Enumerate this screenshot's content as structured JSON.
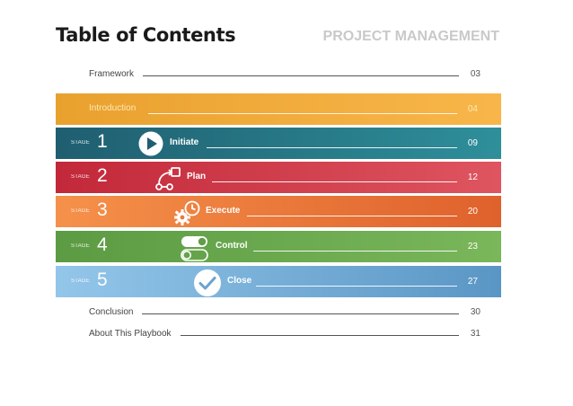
{
  "header": {
    "title": "Table of Contents",
    "brand": "PROJECT MANAGEMENT"
  },
  "framework": {
    "label": "Framework",
    "page": "03"
  },
  "introduction": {
    "label": "Introduction",
    "page": "04",
    "color": "#f0a93b"
  },
  "stage_label": "STAGE",
  "stages": [
    {
      "number": "1",
      "name": "Initiate",
      "page": "09",
      "icon": "play-icon",
      "color_from": "#1f5f70",
      "color_to": "#2d8c98"
    },
    {
      "number": "2",
      "name": "Plan",
      "page": "12",
      "icon": "flow-icon",
      "color_from": "#c4283a",
      "color_to": "#e0555d"
    },
    {
      "number": "3",
      "name": "Execute",
      "page": "20",
      "icon": "gear-clock-icon",
      "color_from": "#f39045",
      "color_to": "#e0632e"
    },
    {
      "number": "4",
      "name": "Control",
      "page": "23",
      "icon": "toggle-icon",
      "color_from": "#5e9d44",
      "color_to": "#79b55a"
    },
    {
      "number": "5",
      "name": "Close",
      "page": "27",
      "icon": "checkmark-icon",
      "color_from": "#92c5e8",
      "color_to": "#5b97c6"
    }
  ],
  "conclusion": {
    "label": "Conclusion",
    "page": "30"
  },
  "about": {
    "label": "About This Playbook",
    "page": "31"
  }
}
